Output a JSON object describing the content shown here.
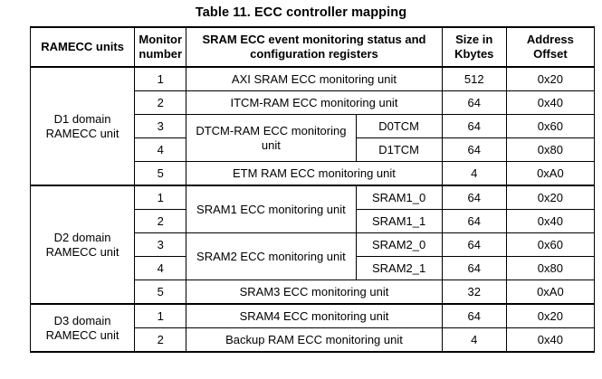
{
  "caption": "Table 11. ECC controller mapping",
  "headers": {
    "unit": "RAMECC units",
    "monitor": "Monitor number",
    "description": "SRAM ECC event monitoring status and configuration registers",
    "size": "Size in Kbytes",
    "offset": "Address Offset"
  },
  "d1": {
    "unit": "D1 domain RAMECC unit",
    "rows": [
      {
        "num": "1",
        "desc": "AXI SRAM ECC monitoring unit",
        "size": "512",
        "offset": "0x20"
      },
      {
        "num": "2",
        "desc": "ITCM-RAM ECC monitoring unit",
        "size": "64",
        "offset": "0x40"
      },
      {
        "num": "3",
        "desc": "DTCM-RAM ECC monitoring unit",
        "sub": "D0TCM",
        "size": "64",
        "offset": "0x60"
      },
      {
        "num": "4",
        "sub": "D1TCM",
        "size": "64",
        "offset": "0x80"
      },
      {
        "num": "5",
        "desc": "ETM RAM ECC monitoring unit",
        "size": "4",
        "offset": "0xA0"
      }
    ]
  },
  "d2": {
    "unit": "D2 domain RAMECC unit",
    "rows": [
      {
        "num": "1",
        "desc": "SRAM1 ECC monitoring unit",
        "sub": "SRAM1_0",
        "size": "64",
        "offset": "0x20"
      },
      {
        "num": "2",
        "sub": "SRAM1_1",
        "size": "64",
        "offset": "0x40"
      },
      {
        "num": "3",
        "desc": "SRAM2 ECC monitoring unit",
        "sub": "SRAM2_0",
        "size": "64",
        "offset": "0x60"
      },
      {
        "num": "4",
        "sub": "SRAM2_1",
        "size": "64",
        "offset": "0x80"
      },
      {
        "num": "5",
        "desc": "SRAM3 ECC monitoring unit",
        "size": "32",
        "offset": "0xA0"
      }
    ]
  },
  "d3": {
    "unit": "D3 domain RAMECC unit",
    "rows": [
      {
        "num": "1",
        "desc": "SRAM4 ECC monitoring unit",
        "size": "64",
        "offset": "0x20"
      },
      {
        "num": "2",
        "desc": "Backup RAM ECC monitoring unit",
        "size": "4",
        "offset": "0x40"
      }
    ]
  }
}
